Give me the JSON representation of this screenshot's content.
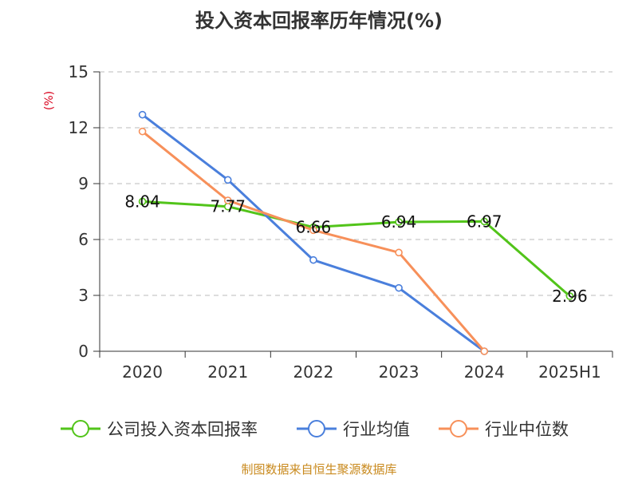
{
  "chart_data": {
    "type": "line",
    "title": "投入资本回报率历年情况(%)",
    "ylabel": "(%)",
    "xlabel": "",
    "ylim": [
      0,
      15
    ],
    "yticks": [
      0,
      3,
      6,
      9,
      12,
      15
    ],
    "grid": true,
    "legend_position": "bottom",
    "categories": [
      "2020",
      "2021",
      "2022",
      "2023",
      "2024",
      "2025H1"
    ],
    "series": [
      {
        "name": "公司投入资本回报率",
        "color": "#52c41a",
        "values": [
          8.04,
          7.77,
          6.66,
          6.94,
          6.97,
          2.96
        ],
        "labels": [
          "8.04",
          "7.77",
          "6.66",
          "6.94",
          "6.97",
          "2.96"
        ],
        "show_labels": true
      },
      {
        "name": "行业均值",
        "color": "#4a7fdc",
        "values": [
          12.7,
          9.2,
          4.9,
          3.4,
          0.0,
          null
        ],
        "show_labels": false
      },
      {
        "name": "行业中位数",
        "color": "#f7905a",
        "values": [
          11.8,
          8.1,
          6.5,
          5.3,
          0.0,
          null
        ],
        "show_labels": false
      }
    ],
    "source_note": "制图数据来自恒生聚源数据库"
  }
}
